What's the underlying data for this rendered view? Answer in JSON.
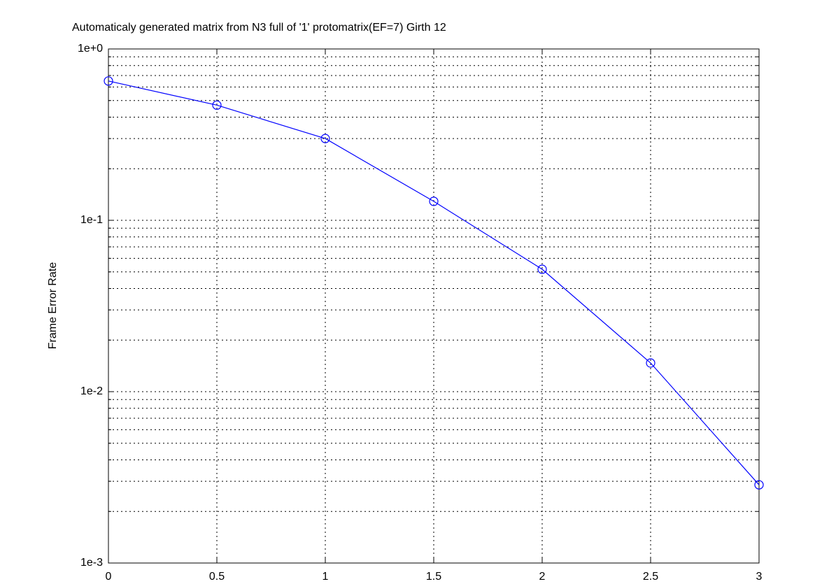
{
  "chart_data": {
    "type": "line",
    "title": "Automaticaly generated matrix from N3 full of '1' protomatrix(EF=7) Girth 12",
    "y_label": "Frame Error Rate",
    "x": [
      0,
      0.5,
      1,
      1.5,
      2,
      2.5,
      3
    ],
    "series": [
      {
        "color": "#0000ff",
        "marker": "circle",
        "values": [
          0.65,
          0.47,
          0.3,
          0.129,
          0.0518,
          0.0147,
          0.00286
        ]
      }
    ],
    "xlim": [
      0,
      3
    ],
    "xticks": [
      0,
      0.5,
      1,
      1.5,
      2,
      2.5,
      3
    ],
    "ylim": [
      0.001,
      1
    ],
    "log_y": true,
    "yticks": [
      {
        "value": 1,
        "label": "1e+0"
      },
      {
        "value": 0.1,
        "label": "1e-1"
      },
      {
        "value": 0.01,
        "label": "1e-2"
      },
      {
        "value": 0.001,
        "label": "1e-3"
      }
    ],
    "minor_yticks": [
      0.002,
      0.003,
      0.004,
      0.005,
      0.006,
      0.007,
      0.008,
      0.009,
      0.02,
      0.03,
      0.04,
      0.05,
      0.06,
      0.07,
      0.08,
      0.09,
      0.2,
      0.3,
      0.4,
      0.5,
      0.6,
      0.7,
      0.8,
      0.9
    ],
    "grid": true
  }
}
